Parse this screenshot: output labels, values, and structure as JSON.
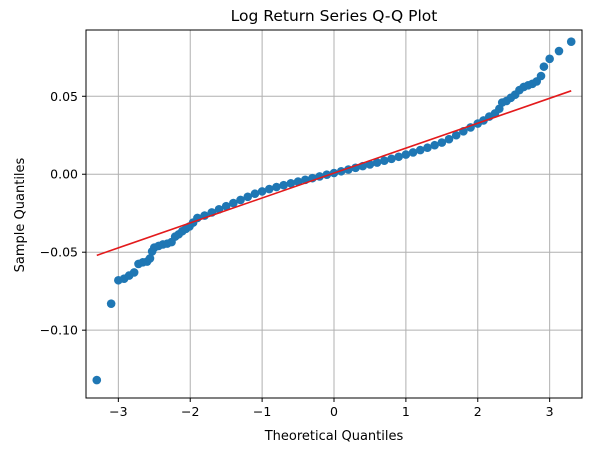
{
  "chart_data": {
    "type": "scatter",
    "title": "Log Return Series Q-Q Plot",
    "xlabel": "Theoretical Quantiles",
    "ylabel": "Sample Quantiles",
    "xlim": [
      -3.45,
      3.45
    ],
    "ylim": [
      -0.1435,
      0.0925
    ],
    "x_ticks": [
      -3,
      -2,
      -1,
      0,
      1,
      2,
      3
    ],
    "x_tick_labels": [
      "−3",
      "−2",
      "−1",
      "0",
      "1",
      "2",
      "3"
    ],
    "y_ticks": [
      -0.1,
      -0.05,
      0.0,
      0.05
    ],
    "y_tick_labels": [
      "−0.10",
      "−0.05",
      "0.00",
      "0.05"
    ],
    "grid": true,
    "legend": "none",
    "series": [
      {
        "kind": "points",
        "color": "#1f77b4",
        "points": [
          [
            -3.3,
            -0.132
          ],
          [
            -3.1,
            -0.083
          ],
          [
            -3.0,
            -0.068
          ],
          [
            -2.92,
            -0.067
          ],
          [
            -2.85,
            -0.065
          ],
          [
            -2.78,
            -0.063
          ],
          [
            -2.72,
            -0.0575
          ],
          [
            -2.66,
            -0.0565
          ],
          [
            -2.6,
            -0.056
          ],
          [
            -2.56,
            -0.054
          ],
          [
            -2.53,
            -0.0495
          ],
          [
            -2.5,
            -0.047
          ],
          [
            -2.44,
            -0.046
          ],
          [
            -2.38,
            -0.045
          ],
          [
            -2.32,
            -0.0445
          ],
          [
            -2.26,
            -0.0435
          ],
          [
            -2.21,
            -0.04
          ],
          [
            -2.16,
            -0.0385
          ],
          [
            -2.11,
            -0.0365
          ],
          [
            -2.06,
            -0.035
          ],
          [
            -2.01,
            -0.0335
          ],
          [
            -1.96,
            -0.031
          ],
          [
            -1.9,
            -0.028
          ],
          [
            -1.8,
            -0.0265
          ],
          [
            -1.7,
            -0.0245
          ],
          [
            -1.6,
            -0.0225
          ],
          [
            -1.5,
            -0.0205
          ],
          [
            -1.4,
            -0.0185
          ],
          [
            -1.3,
            -0.0165
          ],
          [
            -1.2,
            -0.0145
          ],
          [
            -1.1,
            -0.0125
          ],
          [
            -1.0,
            -0.011
          ],
          [
            -0.9,
            -0.0095
          ],
          [
            -0.8,
            -0.0082
          ],
          [
            -0.7,
            -0.007
          ],
          [
            -0.6,
            -0.0058
          ],
          [
            -0.5,
            -0.0047
          ],
          [
            -0.4,
            -0.0036
          ],
          [
            -0.3,
            -0.0025
          ],
          [
            -0.2,
            -0.0014
          ],
          [
            -0.1,
            -0.0003
          ],
          [
            0.0,
            0.0008
          ],
          [
            0.1,
            0.0019
          ],
          [
            0.2,
            0.003
          ],
          [
            0.3,
            0.0041
          ],
          [
            0.4,
            0.0052
          ],
          [
            0.5,
            0.0063
          ],
          [
            0.6,
            0.0075
          ],
          [
            0.7,
            0.0087
          ],
          [
            0.8,
            0.0099
          ],
          [
            0.9,
            0.0112
          ],
          [
            1.0,
            0.0126
          ],
          [
            1.1,
            0.014
          ],
          [
            1.2,
            0.0155
          ],
          [
            1.3,
            0.017
          ],
          [
            1.4,
            0.0186
          ],
          [
            1.5,
            0.0203
          ],
          [
            1.6,
            0.0225
          ],
          [
            1.7,
            0.025
          ],
          [
            1.8,
            0.0275
          ],
          [
            1.9,
            0.03
          ],
          [
            2.0,
            0.0325
          ],
          [
            2.08,
            0.0345
          ],
          [
            2.16,
            0.037
          ],
          [
            2.24,
            0.039
          ],
          [
            2.3,
            0.042
          ],
          [
            2.34,
            0.046
          ],
          [
            2.4,
            0.047
          ],
          [
            2.46,
            0.049
          ],
          [
            2.52,
            0.051
          ],
          [
            2.58,
            0.054
          ],
          [
            2.64,
            0.056
          ],
          [
            2.7,
            0.057
          ],
          [
            2.76,
            0.058
          ],
          [
            2.82,
            0.0595
          ],
          [
            2.88,
            0.063
          ],
          [
            2.92,
            0.069
          ],
          [
            3.0,
            0.074
          ],
          [
            3.13,
            0.079
          ],
          [
            3.3,
            0.085
          ]
        ]
      },
      {
        "kind": "line",
        "color": "#e31a1c",
        "points": [
          [
            -3.3,
            -0.052
          ],
          [
            3.3,
            0.0535
          ]
        ]
      }
    ]
  }
}
